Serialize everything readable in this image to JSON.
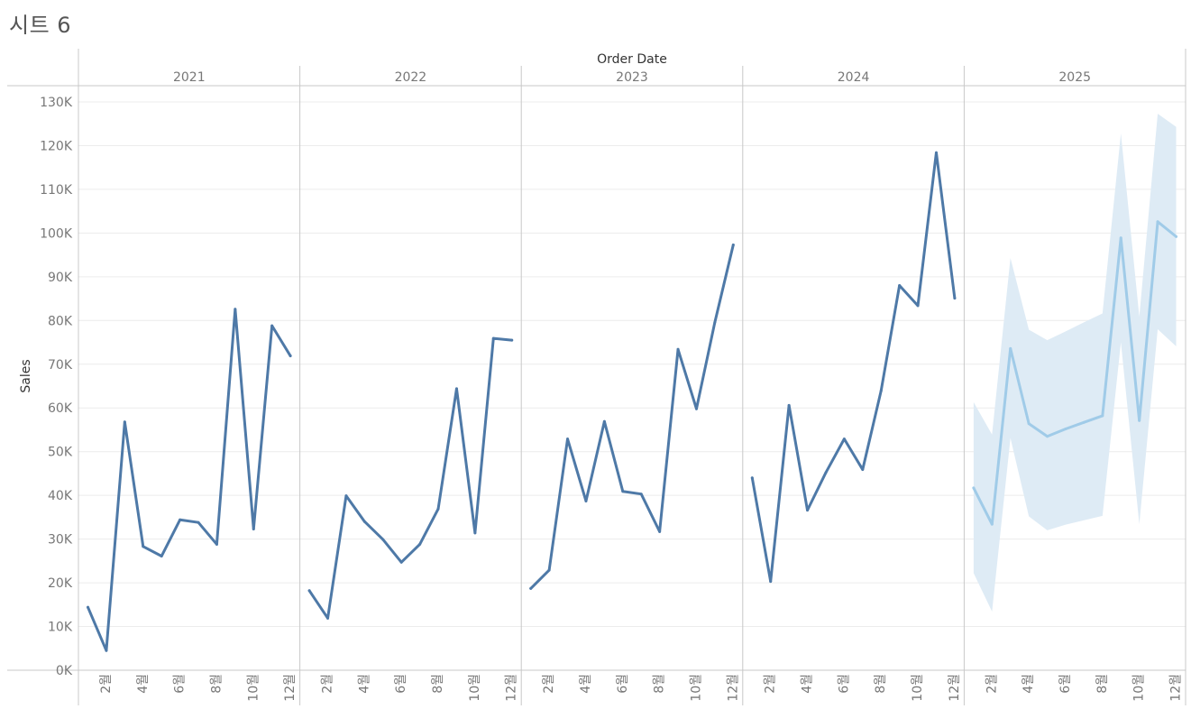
{
  "sheet": {
    "title": "시트 6"
  },
  "chart_data": {
    "type": "line",
    "column_header": "Order Date",
    "ylabel": "Sales",
    "ylim": [
      0,
      130000
    ],
    "yticks": [
      {
        "value": 0,
        "label": "0K"
      },
      {
        "value": 10000,
        "label": "10K"
      },
      {
        "value": 20000,
        "label": "20K"
      },
      {
        "value": 30000,
        "label": "30K"
      },
      {
        "value": 40000,
        "label": "40K"
      },
      {
        "value": 50000,
        "label": "50K"
      },
      {
        "value": 60000,
        "label": "60K"
      },
      {
        "value": 70000,
        "label": "70K"
      },
      {
        "value": 80000,
        "label": "80K"
      },
      {
        "value": 90000,
        "label": "90K"
      },
      {
        "value": 100000,
        "label": "100K"
      },
      {
        "value": 110000,
        "label": "110K"
      },
      {
        "value": 120000,
        "label": "120K"
      },
      {
        "value": 130000,
        "label": "130K"
      }
    ],
    "month_tick_labels": [
      "2월",
      "4월",
      "6월",
      "8월",
      "10월",
      "12월"
    ],
    "month_tick_values": [
      2,
      4,
      6,
      8,
      10,
      12
    ],
    "grid": true,
    "colors": {
      "actual": "#4e79a7",
      "forecast": "#a0cbe8",
      "forecast_band": "#deebf5",
      "gridline": "#ececec",
      "divider": "#c8c8c8",
      "axis_text": "#777777",
      "header_text": "#333333"
    },
    "panels": [
      {
        "year": "2021",
        "forecast": false,
        "months": [
          1,
          2,
          3,
          4,
          5,
          6,
          7,
          8,
          9,
          10,
          11,
          12
        ],
        "values": [
          14400,
          4500,
          56800,
          28300,
          26100,
          34400,
          33800,
          28800,
          82600,
          32300,
          78800,
          71900
        ]
      },
      {
        "year": "2022",
        "forecast": false,
        "months": [
          1,
          2,
          3,
          4,
          5,
          6,
          7,
          8,
          9,
          10,
          11,
          12
        ],
        "values": [
          18200,
          11900,
          39900,
          34000,
          29900,
          24700,
          28800,
          36900,
          64400,
          31400,
          75900,
          75500
        ]
      },
      {
        "year": "2023",
        "forecast": false,
        "months": [
          1,
          2,
          3,
          4,
          5,
          6,
          7,
          8,
          9,
          10,
          11,
          12
        ],
        "values": [
          18700,
          22900,
          52900,
          38700,
          56900,
          40900,
          40300,
          31700,
          73400,
          59800,
          79600,
          97300
        ]
      },
      {
        "year": "2024",
        "forecast": false,
        "months": [
          1,
          2,
          3,
          4,
          5,
          6,
          7,
          8,
          9,
          10,
          11,
          12
        ],
        "values": [
          44000,
          20300,
          60600,
          36600,
          45200,
          52900,
          45900,
          63900,
          88000,
          83400,
          118400,
          85100
        ]
      },
      {
        "year": "2025",
        "forecast": true,
        "months": [
          1,
          2,
          3,
          4,
          5,
          6,
          7,
          8,
          9,
          10,
          11,
          12
        ],
        "values": [
          41700,
          33400,
          73600,
          56400,
          53500,
          55200,
          56700,
          58200,
          98900,
          57100,
          102600,
          99200
        ],
        "upper": [
          61300,
          53900,
          94300,
          77900,
          75500,
          77500,
          79600,
          81600,
          122800,
          80900,
          127300,
          124300
        ],
        "lower": [
          22200,
          13400,
          53100,
          35200,
          32000,
          33300,
          34300,
          35300,
          75000,
          33400,
          78000,
          74100
        ]
      }
    ]
  }
}
